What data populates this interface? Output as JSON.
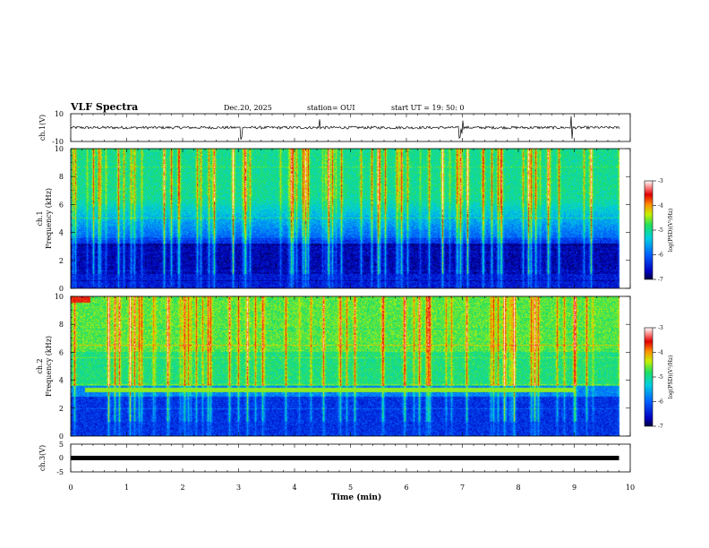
{
  "header": {
    "title": "VLF Spectra",
    "date": "Dec.20, 2025",
    "station": "station= OUI",
    "start": "start  UT =   19: 50: 0"
  },
  "chart_data": [
    {
      "id": "ch1-waveform",
      "type": "line",
      "ylabel": "ch.1(V)",
      "ylim": [
        -10,
        10
      ],
      "yticks": [
        "10",
        "-10"
      ],
      "x_range_min": [
        0,
        9.8
      ],
      "baseline_v": 0,
      "noise_amplitude_v": 1,
      "spikes_min": [
        3.05,
        4.45,
        6.95,
        7.0,
        8.95
      ]
    },
    {
      "id": "ch1-spectrogram",
      "type": "heatmap",
      "ylabel_line1": "ch.1",
      "ylabel_line2": "Frequency  (kHz)",
      "ylim": [
        0,
        10
      ],
      "yticks": [
        "0",
        "2",
        "4",
        "6",
        "8",
        "10"
      ],
      "x_range_min": [
        0,
        9.8
      ],
      "intense_band_khz": [
        1.0,
        3.2
      ],
      "colorbar": {
        "label": "log(PSD)(V²/Hz)",
        "min": -7,
        "max": -3,
        "ticks": [
          "-3",
          "-4",
          "-5",
          "-6",
          "-7"
        ]
      }
    },
    {
      "id": "ch2-spectrogram",
      "type": "heatmap",
      "ylabel_line1": "ch.2",
      "ylabel_line2": "Frequency  (kHz)",
      "ylim": [
        0,
        10
      ],
      "yticks": [
        "0",
        "2",
        "4",
        "6",
        "8",
        "10"
      ],
      "x_range_min": [
        0,
        9.8
      ],
      "narrowband_line_khz": 3.3,
      "narrowband_span_min": [
        0.25,
        9.0
      ],
      "colorbar": {
        "label": "log(PSD)(V²/Hz)",
        "min": -7,
        "max": -3,
        "ticks": [
          "-3",
          "-4",
          "-5",
          "-6",
          "-7"
        ]
      }
    },
    {
      "id": "ch3-waveform",
      "type": "line",
      "ylabel": "ch.3(V)",
      "ylim": [
        -5,
        5
      ],
      "yticks": [
        "5",
        "0",
        "-5"
      ],
      "x_range_min": [
        0,
        9.8
      ],
      "level_v": 0
    }
  ],
  "xaxis": {
    "label": "Time  (min)",
    "min": 0,
    "max": 10,
    "ticks": [
      "0",
      "1",
      "2",
      "3",
      "4",
      "5",
      "6",
      "7",
      "8",
      "9",
      "10"
    ]
  }
}
